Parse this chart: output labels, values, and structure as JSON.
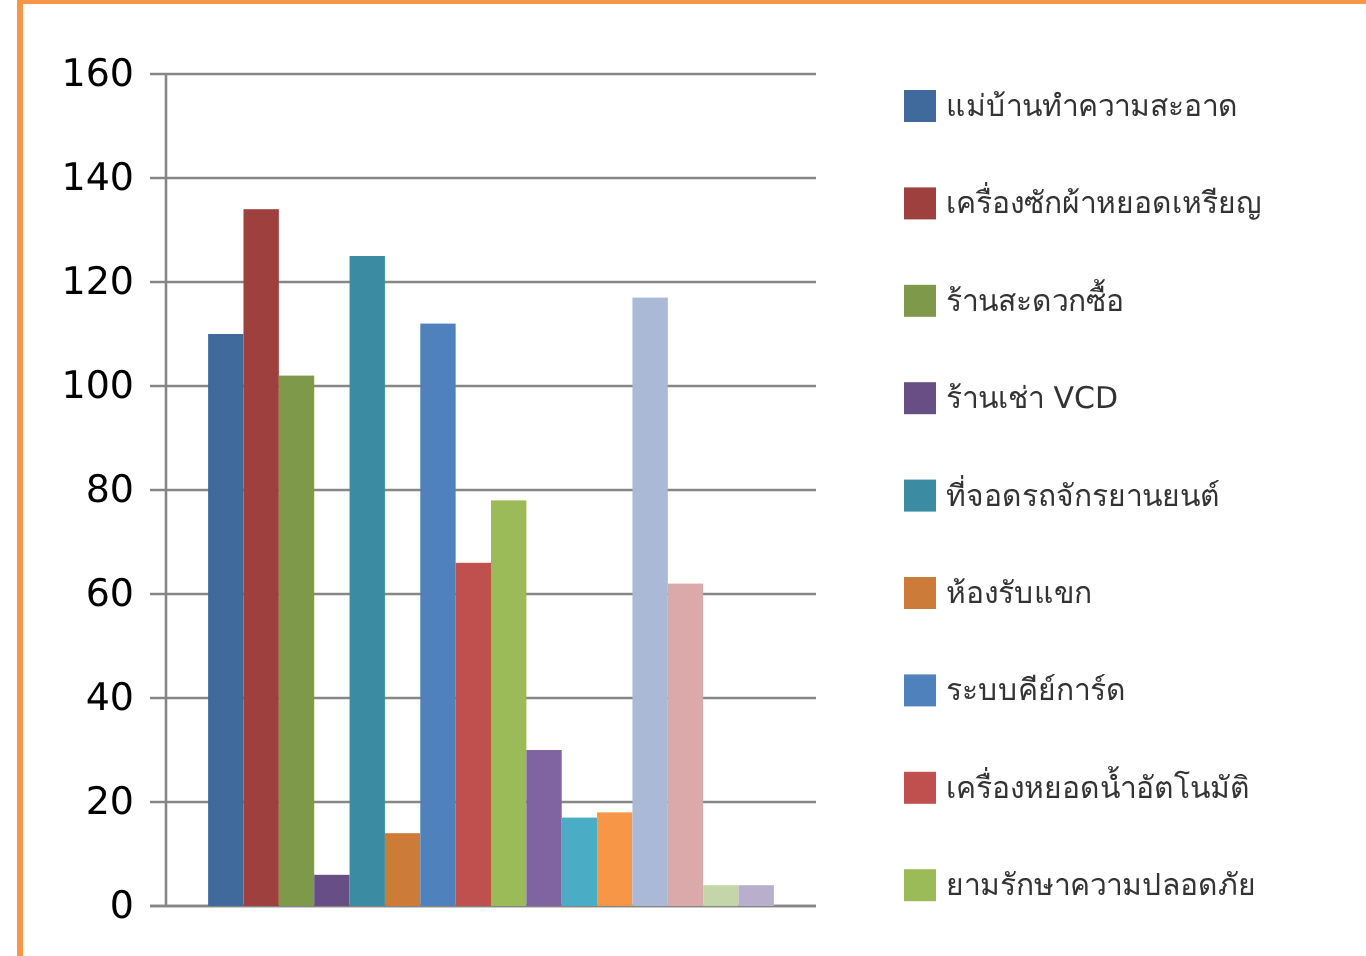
{
  "chart_data": {
    "type": "bar",
    "categories": [
      null
    ],
    "series": [
      {
        "name": "แม่บ้านทำความสะอาด",
        "color": "#406a9c",
        "values": [
          110
        ]
      },
      {
        "name": "เครื่องซักผ้าหยอดเหรียญ",
        "color": "#9e413e",
        "values": [
          134
        ]
      },
      {
        "name": "ร้านสะดวกซื้อ",
        "color": "#7f994a",
        "values": [
          102
        ]
      },
      {
        "name": "ร้านเช่า  VCD",
        "color": "#674f86",
        "values": [
          6
        ]
      },
      {
        "name": "ที่จอดรถจักรยานยนต์",
        "color": "#3b8ba3",
        "values": [
          125
        ]
      },
      {
        "name": "ห้องรับแขก",
        "color": "#cc7b39",
        "values": [
          14
        ]
      },
      {
        "name": "ระบบคีย์การ์ด",
        "color": "#4f81bd",
        "values": [
          112
        ]
      },
      {
        "name": "เครื่องหยอดน้ำอัตโนมัติ",
        "color": "#c0504d",
        "values": [
          66
        ]
      },
      {
        "name": "ยามรักษาความปลอดภัย",
        "color": "#9bbb59",
        "values": [
          78
        ]
      },
      {
        "color": "#8064a2",
        "values": [
          30
        ]
      },
      {
        "color": "#4bacc6",
        "values": [
          17
        ]
      },
      {
        "color": "#f79646",
        "values": [
          18
        ]
      },
      {
        "color": "#aab9d6",
        "values": [
          117
        ]
      },
      {
        "color": "#d9aaa9",
        "values": [
          62
        ]
      },
      {
        "color": "#c4d6a9",
        "values": [
          4
        ]
      },
      {
        "color": "#b9aecb",
        "values": [
          4
        ]
      }
    ],
    "ylim": [
      0,
      160
    ],
    "yticks": [
      0,
      20,
      40,
      60,
      80,
      100,
      120,
      140,
      160
    ],
    "grid": "y",
    "legend": "right"
  }
}
